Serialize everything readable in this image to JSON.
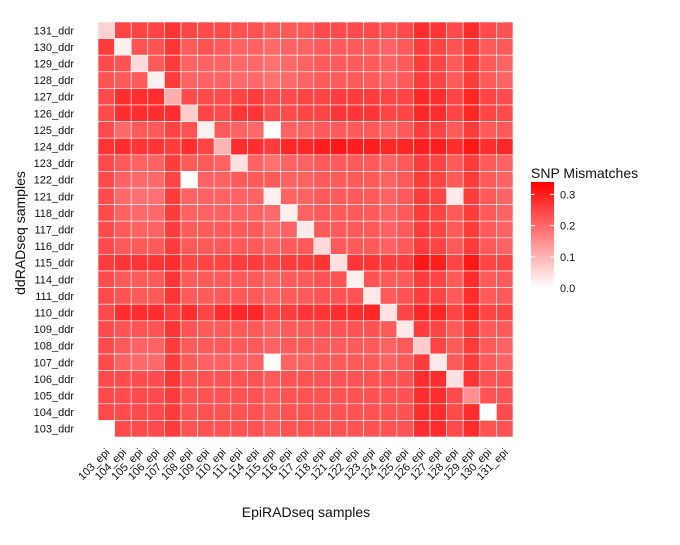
{
  "chart_data": {
    "type": "heatmap",
    "xlabel": "EpiRADseq samples",
    "ylabel": "ddRADseq samples",
    "x_categories": [
      "103_epi",
      "104_epi",
      "105_epi",
      "106_epi",
      "107_epi",
      "108_epi",
      "109_epi",
      "110_epi",
      "111_epi",
      "114_epi",
      "115_epi",
      "116_epi",
      "117_epi",
      "118_epi",
      "121_epi",
      "122_epi",
      "123_epi",
      "124_epi",
      "125_epi",
      "126_epi",
      "127_epi",
      "128_epi",
      "129_epi",
      "130_epi",
      "131_epi"
    ],
    "y_categories": [
      "103_ddr",
      "104_ddr",
      "105_ddr",
      "106_ddr",
      "107_ddr",
      "108_ddr",
      "109_ddr",
      "110_ddr",
      "111_ddr",
      "114_ddr",
      "115_ddr",
      "116_ddr",
      "117_ddr",
      "118_ddr",
      "121_ddr",
      "122_ddr",
      "123_ddr",
      "124_ddr",
      "125_ddr",
      "126_ddr",
      "127_ddr",
      "128_ddr",
      "129_ddr",
      "130_ddr",
      "131_ddr"
    ],
    "legend": {
      "title": "SNP Mismatches",
      "range": [
        0,
        0.34
      ],
      "ticks": [
        0.0,
        0.1,
        0.2,
        0.3
      ],
      "tick_labels": [
        "0.0",
        "0.1",
        "0.2",
        "0.3"
      ],
      "low_color": "#ffffff",
      "high_color": "#ff0000",
      "placement": "right"
    },
    "na_cells": [
      [
        24,
        0
      ],
      [
        23,
        23
      ]
    ],
    "values": [
      [
        0.06,
        0.25,
        0.25,
        0.25,
        0.27,
        0.25,
        0.24,
        0.24,
        0.23,
        0.23,
        0.22,
        0.22,
        0.22,
        0.24,
        0.24,
        0.24,
        0.24,
        0.23,
        0.24,
        0.28,
        0.27,
        0.24,
        0.28,
        0.24,
        0.23
      ],
      [
        0.26,
        0.02,
        0.23,
        0.23,
        0.27,
        0.22,
        0.23,
        0.22,
        0.21,
        0.21,
        0.2,
        0.21,
        0.21,
        0.22,
        0.22,
        0.22,
        0.22,
        0.21,
        0.22,
        0.26,
        0.25,
        0.23,
        0.26,
        0.22,
        0.22
      ],
      [
        0.24,
        0.23,
        0.05,
        0.22,
        0.26,
        0.21,
        0.21,
        0.21,
        0.2,
        0.2,
        0.19,
        0.2,
        0.21,
        0.22,
        0.22,
        0.22,
        0.22,
        0.21,
        0.22,
        0.26,
        0.25,
        0.22,
        0.26,
        0.22,
        0.21
      ],
      [
        0.23,
        0.22,
        0.22,
        0.02,
        0.26,
        0.21,
        0.21,
        0.21,
        0.2,
        0.2,
        0.19,
        0.2,
        0.21,
        0.22,
        0.22,
        0.22,
        0.22,
        0.21,
        0.22,
        0.26,
        0.25,
        0.22,
        0.26,
        0.22,
        0.21
      ],
      [
        0.24,
        0.28,
        0.28,
        0.28,
        0.11,
        0.24,
        0.24,
        0.24,
        0.25,
        0.26,
        0.24,
        0.24,
        0.25,
        0.25,
        0.26,
        0.26,
        0.26,
        0.25,
        0.25,
        0.29,
        0.28,
        0.25,
        0.29,
        0.25,
        0.24
      ],
      [
        0.24,
        0.28,
        0.28,
        0.28,
        0.28,
        0.07,
        0.25,
        0.24,
        0.27,
        0.27,
        0.24,
        0.24,
        0.25,
        0.25,
        0.27,
        0.27,
        0.27,
        0.25,
        0.25,
        0.29,
        0.28,
        0.25,
        0.29,
        0.25,
        0.24
      ],
      [
        0.24,
        0.2,
        0.22,
        0.22,
        0.25,
        0.23,
        0.02,
        0.22,
        0.21,
        0.2,
        0.0,
        0.21,
        0.21,
        0.22,
        0.22,
        0.22,
        0.22,
        0.21,
        0.22,
        0.26,
        0.25,
        0.22,
        0.26,
        0.22,
        0.22
      ],
      [
        0.27,
        0.28,
        0.27,
        0.27,
        0.26,
        0.28,
        0.25,
        0.1,
        0.28,
        0.28,
        0.26,
        0.29,
        0.29,
        0.3,
        0.31,
        0.3,
        0.3,
        0.29,
        0.29,
        0.3,
        0.3,
        0.28,
        0.31,
        0.28,
        0.29
      ],
      [
        0.24,
        0.22,
        0.21,
        0.21,
        0.26,
        0.22,
        0.22,
        0.21,
        0.04,
        0.21,
        0.19,
        0.21,
        0.21,
        0.22,
        0.22,
        0.22,
        0.22,
        0.21,
        0.22,
        0.26,
        0.25,
        0.22,
        0.26,
        0.22,
        0.21
      ],
      [
        0.24,
        0.21,
        0.2,
        0.2,
        0.25,
        0.0,
        0.21,
        0.21,
        0.22,
        0.22,
        0.22,
        0.21,
        0.21,
        0.22,
        0.22,
        0.22,
        0.22,
        0.21,
        0.22,
        0.26,
        0.25,
        0.22,
        0.26,
        0.22,
        0.21
      ],
      [
        0.24,
        0.2,
        0.19,
        0.19,
        0.26,
        0.21,
        0.21,
        0.21,
        0.21,
        0.21,
        0.02,
        0.21,
        0.21,
        0.22,
        0.22,
        0.22,
        0.22,
        0.21,
        0.22,
        0.26,
        0.25,
        0.03,
        0.26,
        0.22,
        0.21
      ],
      [
        0.24,
        0.21,
        0.2,
        0.2,
        0.26,
        0.21,
        0.21,
        0.21,
        0.21,
        0.21,
        0.2,
        0.02,
        0.21,
        0.22,
        0.22,
        0.22,
        0.22,
        0.21,
        0.22,
        0.26,
        0.25,
        0.22,
        0.26,
        0.22,
        0.21
      ],
      [
        0.24,
        0.22,
        0.21,
        0.21,
        0.26,
        0.22,
        0.22,
        0.22,
        0.22,
        0.22,
        0.2,
        0.21,
        0.03,
        0.22,
        0.22,
        0.22,
        0.22,
        0.21,
        0.22,
        0.26,
        0.25,
        0.22,
        0.26,
        0.22,
        0.21
      ],
      [
        0.24,
        0.22,
        0.22,
        0.22,
        0.26,
        0.22,
        0.22,
        0.22,
        0.22,
        0.22,
        0.21,
        0.22,
        0.22,
        0.05,
        0.22,
        0.22,
        0.22,
        0.21,
        0.22,
        0.26,
        0.25,
        0.22,
        0.26,
        0.22,
        0.21
      ],
      [
        0.26,
        0.27,
        0.27,
        0.27,
        0.28,
        0.25,
        0.25,
        0.25,
        0.26,
        0.26,
        0.25,
        0.26,
        0.26,
        0.27,
        0.04,
        0.27,
        0.27,
        0.26,
        0.26,
        0.31,
        0.3,
        0.25,
        0.31,
        0.25,
        0.25
      ],
      [
        0.24,
        0.22,
        0.22,
        0.22,
        0.27,
        0.22,
        0.22,
        0.22,
        0.22,
        0.22,
        0.21,
        0.22,
        0.22,
        0.23,
        0.23,
        0.02,
        0.23,
        0.22,
        0.22,
        0.26,
        0.25,
        0.22,
        0.28,
        0.22,
        0.22
      ],
      [
        0.24,
        0.23,
        0.22,
        0.22,
        0.27,
        0.22,
        0.22,
        0.22,
        0.22,
        0.22,
        0.21,
        0.22,
        0.22,
        0.23,
        0.23,
        0.23,
        0.03,
        0.22,
        0.23,
        0.26,
        0.25,
        0.22,
        0.28,
        0.22,
        0.22
      ],
      [
        0.24,
        0.28,
        0.28,
        0.28,
        0.26,
        0.28,
        0.25,
        0.28,
        0.29,
        0.29,
        0.25,
        0.26,
        0.27,
        0.27,
        0.28,
        0.28,
        0.29,
        0.04,
        0.25,
        0.29,
        0.29,
        0.25,
        0.29,
        0.25,
        0.25
      ],
      [
        0.24,
        0.23,
        0.23,
        0.23,
        0.27,
        0.23,
        0.22,
        0.22,
        0.22,
        0.22,
        0.21,
        0.22,
        0.22,
        0.23,
        0.23,
        0.23,
        0.23,
        0.22,
        0.03,
        0.26,
        0.25,
        0.22,
        0.26,
        0.22,
        0.22
      ],
      [
        0.24,
        0.22,
        0.21,
        0.21,
        0.26,
        0.22,
        0.22,
        0.22,
        0.22,
        0.22,
        0.21,
        0.22,
        0.22,
        0.22,
        0.22,
        0.22,
        0.22,
        0.21,
        0.22,
        0.07,
        0.25,
        0.22,
        0.26,
        0.22,
        0.21
      ],
      [
        0.24,
        0.21,
        0.2,
        0.2,
        0.26,
        0.22,
        0.21,
        0.21,
        0.21,
        0.21,
        0.0,
        0.21,
        0.21,
        0.22,
        0.22,
        0.22,
        0.22,
        0.21,
        0.22,
        0.26,
        0.03,
        0.22,
        0.26,
        0.22,
        0.21
      ],
      [
        0.24,
        0.24,
        0.24,
        0.24,
        0.27,
        0.23,
        0.23,
        0.23,
        0.23,
        0.23,
        0.22,
        0.23,
        0.23,
        0.23,
        0.23,
        0.23,
        0.23,
        0.23,
        0.23,
        0.28,
        0.28,
        0.04,
        0.27,
        0.23,
        0.23
      ],
      [
        0.24,
        0.24,
        0.24,
        0.24,
        0.26,
        0.23,
        0.23,
        0.23,
        0.23,
        0.23,
        0.22,
        0.23,
        0.23,
        0.23,
        0.23,
        0.23,
        0.23,
        0.23,
        0.23,
        0.28,
        0.28,
        0.24,
        0.15,
        0.23,
        0.23
      ],
      [
        0.24,
        0.24,
        0.24,
        0.24,
        0.26,
        0.23,
        0.23,
        0.23,
        0.23,
        0.23,
        0.22,
        0.23,
        0.23,
        0.23,
        0.23,
        0.23,
        0.23,
        0.23,
        0.23,
        0.28,
        0.28,
        0.24,
        0.28,
        null,
        0.24
      ],
      [
        null,
        0.24,
        0.24,
        0.24,
        0.26,
        0.23,
        0.23,
        0.23,
        0.23,
        0.23,
        0.22,
        0.23,
        0.23,
        0.23,
        0.23,
        0.23,
        0.23,
        0.23,
        0.23,
        0.28,
        0.28,
        0.24,
        0.28,
        0.23,
        0.23
      ]
    ]
  }
}
